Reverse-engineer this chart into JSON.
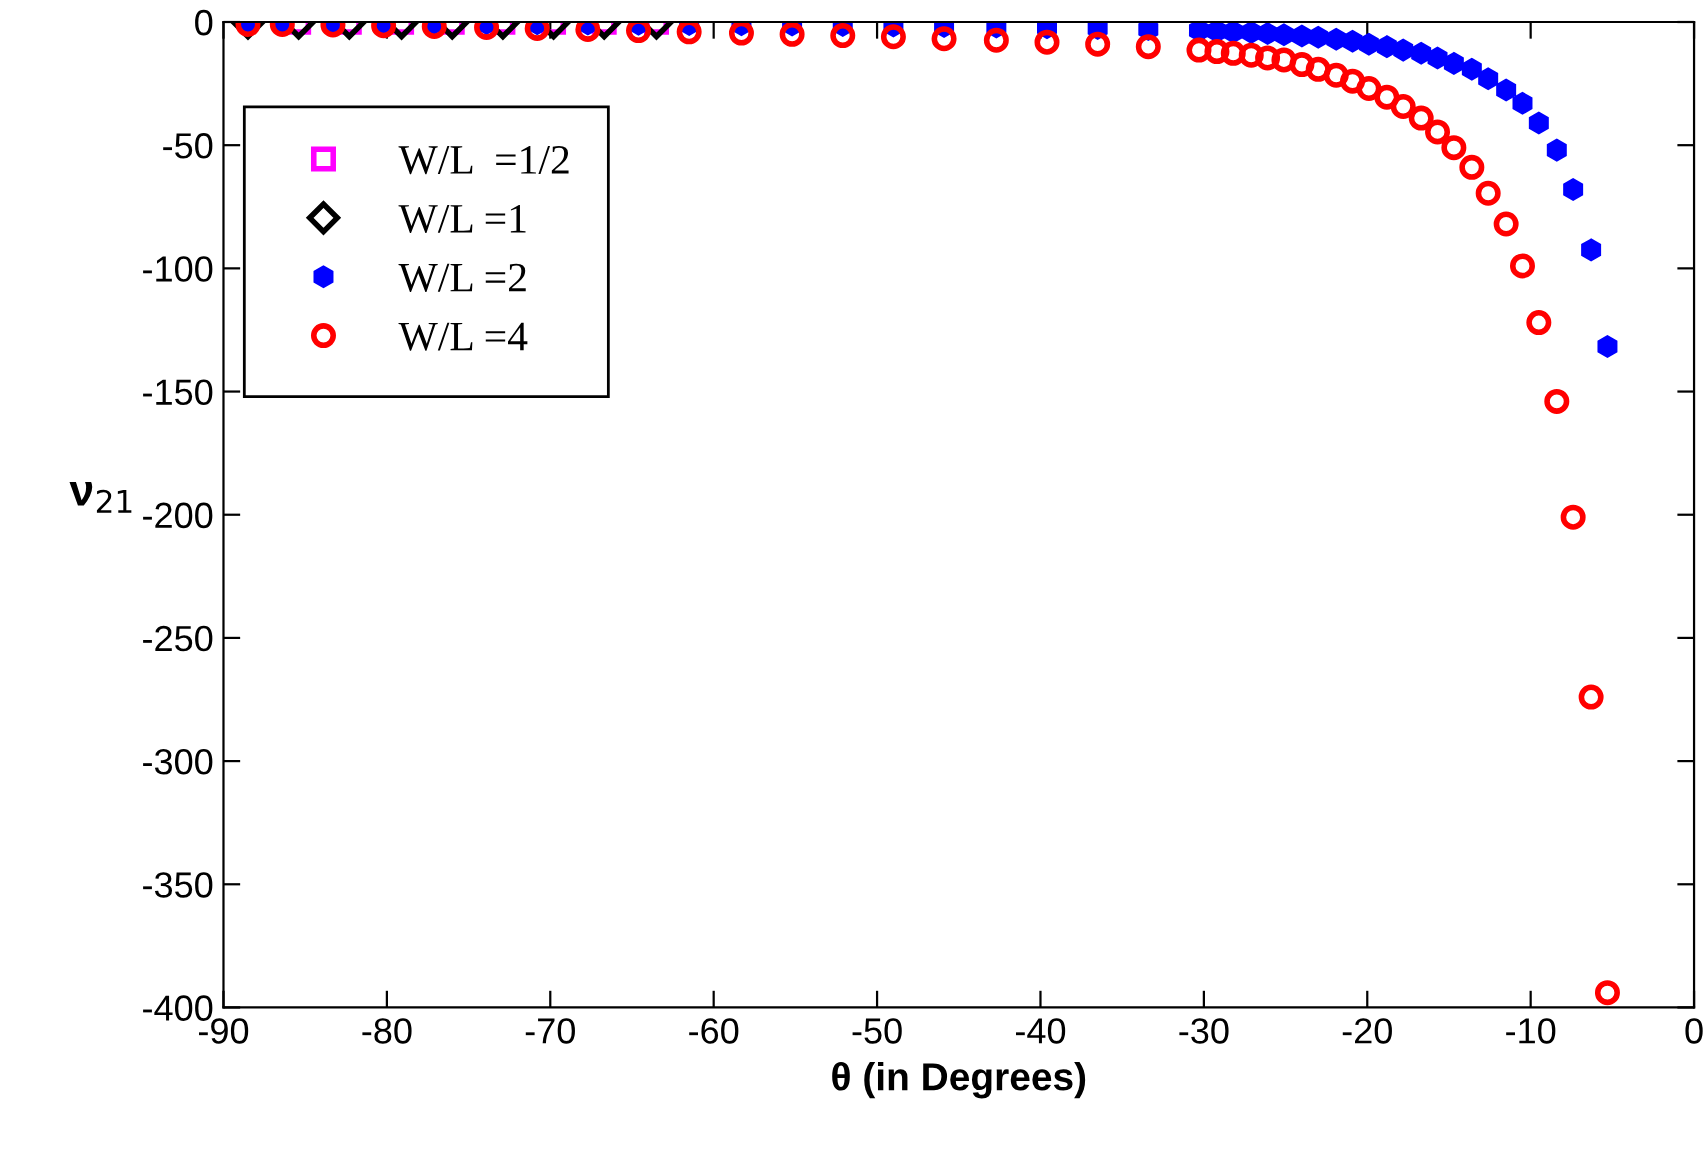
{
  "chart_data": {
    "type": "scatter",
    "xlabel": "θ (in Degrees)",
    "ylabel": "ν$_{21}$",
    "xlim": [
      -90,
      0
    ],
    "ylim": [
      -400,
      0
    ],
    "xticks": [
      -90,
      -80,
      -70,
      -60,
      -50,
      -40,
      -30,
      -20,
      -10,
      0
    ],
    "yticks": [
      -400,
      -350,
      -300,
      -250,
      -200,
      -150,
      -100,
      -50,
      0
    ],
    "grid": false,
    "legend": "top left",
    "series": [
      {
        "name": "W/L  =1/2",
        "color": "#ff00ff",
        "marker": "square",
        "x": [
          -63.5,
          -66.7,
          -69.8,
          -72.9,
          -76.0,
          -79.1,
          -82.3,
          -85.4
        ],
        "values": [
          -0.1,
          -0.1,
          -0.1,
          -0.1,
          -0.1,
          -0.1,
          -0.1,
          -0.1
        ]
      },
      {
        "name": "W/L =1",
        "color": "#000000",
        "marker": "diamond",
        "x": [
          -63.5,
          -66.7,
          -69.8,
          -72.9,
          -76.0,
          -79.1,
          -82.3,
          -85.4,
          -88.5
        ],
        "values": [
          -0.3,
          -0.3,
          -0.3,
          -0.3,
          -0.3,
          -0.3,
          -0.3,
          -0.3,
          -0.3
        ]
      },
      {
        "name": "W/L =2",
        "color": "#0000ff",
        "marker": "star",
        "x": [
          -5.3,
          -6.3,
          -7.4,
          -8.4,
          -9.5,
          -10.5,
          -11.5,
          -12.6,
          -13.6,
          -14.7,
          -15.7,
          -16.7,
          -17.8,
          -18.8,
          -19.9,
          -20.9,
          -21.9,
          -23.0,
          -24.0,
          -25.1,
          -26.1,
          -27.1,
          -28.2,
          -29.2,
          -30.3,
          -33.4,
          -36.5,
          -39.6,
          -42.7,
          -45.9,
          -49.0,
          -52.1,
          -55.2,
          -58.3,
          -61.5,
          -64.6,
          -67.7,
          -70.8,
          -73.9,
          -77.1,
          -80.2,
          -83.3,
          -86.4,
          -88.5
        ],
        "values": [
          -131.7,
          -92.5,
          -68,
          -52,
          -41,
          -33,
          -27.6,
          -23,
          -19.2,
          -16.8,
          -14.6,
          -12.7,
          -11.4,
          -10,
          -9,
          -7.8,
          -7,
          -6.2,
          -5.7,
          -5.2,
          -4.7,
          -4.2,
          -4,
          -3.7,
          -3.4,
          -3,
          -2.6,
          -2.3,
          -2,
          -1.8,
          -1.6,
          -1.4,
          -1.2,
          -1.1,
          -1,
          -0.9,
          -0.8,
          -0.7,
          -0.6,
          -0.5,
          -0.5,
          -0.4,
          -0.4,
          -0.4
        ]
      },
      {
        "name": "W/L =4",
        "color": "#ff0000",
        "marker": "circle",
        "x": [
          -5.3,
          -6.3,
          -7.4,
          -8.4,
          -9.5,
          -10.5,
          -11.5,
          -12.6,
          -13.6,
          -14.7,
          -15.7,
          -16.7,
          -17.8,
          -18.8,
          -19.9,
          -20.9,
          -21.9,
          -23.0,
          -24.0,
          -25.1,
          -26.1,
          -27.1,
          -28.2,
          -29.2,
          -30.3,
          -33.4,
          -36.5,
          -39.6,
          -42.7,
          -45.9,
          -49.0,
          -52.1,
          -55.2,
          -58.3,
          -61.5,
          -64.6,
          -67.7,
          -70.8,
          -73.9,
          -77.1,
          -80.2,
          -83.3,
          -86.4,
          -88.5
        ],
        "values": [
          -394,
          -274,
          -201,
          -154,
          -122,
          -99,
          -82,
          -69.5,
          -59,
          -51,
          -44.6,
          -39,
          -34.3,
          -30.5,
          -27,
          -24,
          -21.6,
          -19.2,
          -17.3,
          -15.4,
          -14.6,
          -13.5,
          -12.7,
          -12,
          -11.4,
          -10,
          -9,
          -8.2,
          -7.4,
          -6.8,
          -6,
          -5.5,
          -5,
          -4.5,
          -4,
          -3.5,
          -3,
          -2.6,
          -2.2,
          -1.8,
          -1.5,
          -1.2,
          -1,
          -1
        ]
      }
    ]
  }
}
